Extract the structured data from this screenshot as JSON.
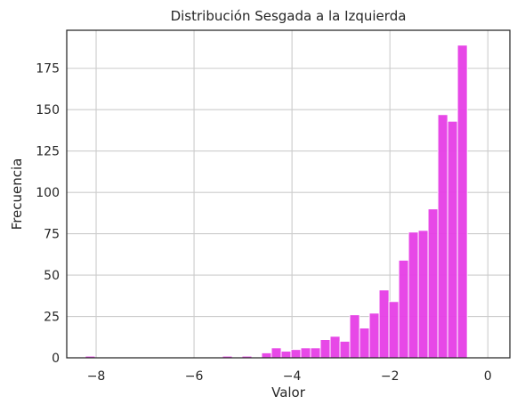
{
  "chart_data": {
    "type": "bar",
    "title": "Distribución Sesgada a la Izquierda",
    "xlabel": "Valor",
    "ylabel": "Frecuencia",
    "xlim": [
      -8.6,
      0.45
    ],
    "ylim": [
      0,
      198
    ],
    "xticks": [
      -8,
      -6,
      -4,
      -2,
      0
    ],
    "xtick_labels": [
      "−8",
      "−6",
      "−4",
      "−2",
      "0"
    ],
    "yticks": [
      0,
      25,
      50,
      75,
      100,
      125,
      150,
      175
    ],
    "ytick_labels": [
      "0",
      "25",
      "50",
      "75",
      "100",
      "125",
      "150",
      "175"
    ],
    "grid": true,
    "bar_color": "#e63ee6",
    "bins": [
      {
        "x0": -8.22,
        "x1": -8.02,
        "value": 1
      },
      {
        "x0": -5.42,
        "x1": -5.22,
        "value": 1
      },
      {
        "x0": -5.02,
        "x1": -4.82,
        "value": 1
      },
      {
        "x0": -4.62,
        "x1": -4.42,
        "value": 3
      },
      {
        "x0": -4.42,
        "x1": -4.22,
        "value": 6
      },
      {
        "x0": -4.22,
        "x1": -4.02,
        "value": 4
      },
      {
        "x0": -4.02,
        "x1": -3.82,
        "value": 5
      },
      {
        "x0": -3.82,
        "x1": -3.62,
        "value": 6
      },
      {
        "x0": -3.62,
        "x1": -3.42,
        "value": 6
      },
      {
        "x0": -3.42,
        "x1": -3.22,
        "value": 11
      },
      {
        "x0": -3.22,
        "x1": -3.02,
        "value": 13
      },
      {
        "x0": -3.02,
        "x1": -2.82,
        "value": 10
      },
      {
        "x0": -2.82,
        "x1": -2.62,
        "value": 26
      },
      {
        "x0": -2.62,
        "x1": -2.42,
        "value": 18
      },
      {
        "x0": -2.42,
        "x1": -2.22,
        "value": 27
      },
      {
        "x0": -2.22,
        "x1": -2.02,
        "value": 41
      },
      {
        "x0": -2.02,
        "x1": -1.82,
        "value": 34
      },
      {
        "x0": -1.82,
        "x1": -1.62,
        "value": 59
      },
      {
        "x0": -1.62,
        "x1": -1.42,
        "value": 76
      },
      {
        "x0": -1.42,
        "x1": -1.22,
        "value": 77
      },
      {
        "x0": -1.22,
        "x1": -1.02,
        "value": 90
      },
      {
        "x0": -1.02,
        "x1": -0.82,
        "value": 147
      },
      {
        "x0": -0.82,
        "x1": -0.62,
        "value": 143
      },
      {
        "x0": -0.62,
        "x1": -0.42,
        "value": 189
      },
      {
        "x0": -0.42,
        "x1": -0.22,
        "value": 0
      },
      {
        "x0": -0.22,
        "x1": 0.0,
        "value": 0
      }
    ]
  }
}
